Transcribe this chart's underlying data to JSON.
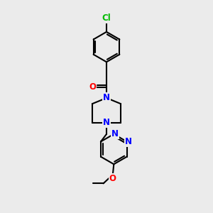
{
  "background_color": "#ebebeb",
  "bond_color": "#000000",
  "atom_colors": {
    "N": "#0000ff",
    "O": "#ff0000",
    "Cl": "#00bb00",
    "C": "#000000"
  },
  "font_size": 8.5,
  "line_width": 1.5,
  "figsize": [
    3.0,
    3.0
  ],
  "dpi": 100
}
